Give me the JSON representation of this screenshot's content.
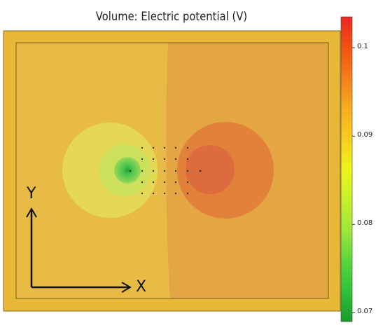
{
  "title": "Volume: Electric potential (V)",
  "axes_triad": {
    "x_label": "X",
    "y_label": "Y"
  },
  "colorbar": {
    "ticks": [
      {
        "value": 0.1,
        "label": "0.1"
      },
      {
        "value": 0.09,
        "label": "0.09"
      },
      {
        "value": 0.08,
        "label": "0.08"
      },
      {
        "value": 0.07,
        "label": "0.07"
      }
    ],
    "colors_top_to_bottom": [
      "#e8282a",
      "#f3520f",
      "#f57e1b",
      "#f7ac20",
      "#f8cd1f",
      "#eef51a",
      "#c6f02a",
      "#9ee83a",
      "#5bd63c",
      "#2fc23a",
      "#1b9a2a"
    ]
  },
  "colors": {
    "field_left": "#e8bb45",
    "field_right": "#e3a642",
    "frame": "#e7b838",
    "bubble_left_outer": "#e5dc55",
    "bubble_left_mid": "#c6e06a",
    "bubble_left_core": "#48c44e",
    "bubble_right_outer": "#e2803a",
    "bubble_right_inner": "#dd6a3e",
    "points": "#333333"
  }
}
